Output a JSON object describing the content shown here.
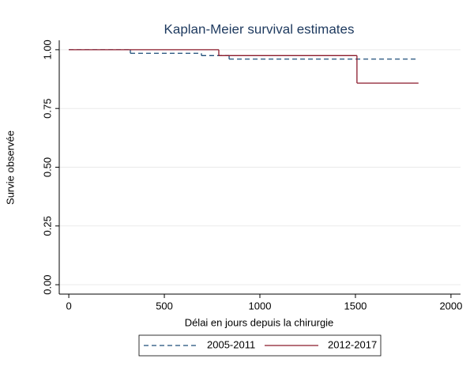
{
  "chart_data": {
    "type": "step",
    "title": "Kaplan-Meier survival estimates",
    "x_label": "Délai en jours depuis la chirurgie",
    "y_label": "Survie observée",
    "xlim": [
      -50,
      2050
    ],
    "xticks": [
      0,
      500,
      1000,
      1500,
      2000
    ],
    "ylim": [
      -0.04,
      1.04
    ],
    "yticks": [
      {
        "value": 0,
        "label": "0.00"
      },
      {
        "value": 0.25,
        "label": "0.25"
      },
      {
        "value": 0.5,
        "label": "0.50"
      },
      {
        "value": 0.75,
        "label": "0.75"
      },
      {
        "value": 1,
        "label": "1.00"
      }
    ],
    "grid": true,
    "series": [
      {
        "name": "2005-2011",
        "color": "#1f4e79",
        "dash": true,
        "x": [
          0,
          322,
          694,
          839,
          1830
        ],
        "values": [
          1,
          0.985,
          0.975,
          0.96,
          0.96
        ]
      },
      {
        "name": "2012-2017",
        "color": "#8b1a2b",
        "dash": false,
        "x": [
          0,
          785,
          1508,
          1830
        ],
        "values": [
          1,
          0.975,
          0.858,
          0.858
        ]
      }
    ]
  }
}
